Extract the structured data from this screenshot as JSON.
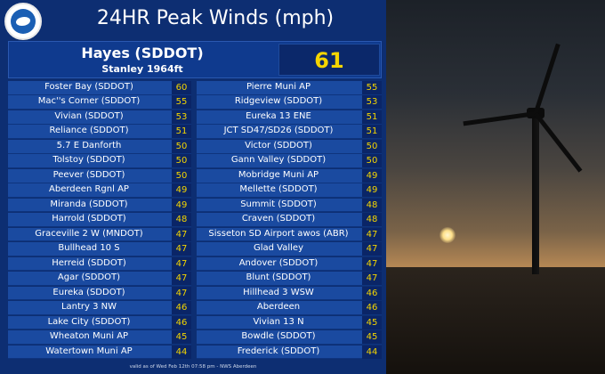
{
  "title": "24HR Peak Winds (mph)",
  "logo": {
    "icon": "nws-logo-icon",
    "text": "NATIONAL WEATHER SERVICE"
  },
  "featured": {
    "name": "Hayes (SDDOT)",
    "subtitle": "Stanley 1964ft",
    "value": "61"
  },
  "left_column": [
    {
      "name": "Foster Bay (SDDOT)",
      "value": "60"
    },
    {
      "name": "Mac''s Corner (SDDOT)",
      "value": "55"
    },
    {
      "name": "Vivian (SDDOT)",
      "value": "53"
    },
    {
      "name": "Reliance (SDDOT)",
      "value": "51"
    },
    {
      "name": "5.7 E Danforth",
      "value": "50"
    },
    {
      "name": "Tolstoy (SDDOT)",
      "value": "50"
    },
    {
      "name": "Peever (SDDOT)",
      "value": "50"
    },
    {
      "name": "Aberdeen Rgnl AP",
      "value": "49"
    },
    {
      "name": "Miranda (SDDOT)",
      "value": "49"
    },
    {
      "name": "Harrold (SDDOT)",
      "value": "48"
    },
    {
      "name": "Graceville 2 W (MNDOT)",
      "value": "47"
    },
    {
      "name": "Bullhead 10 S",
      "value": "47"
    },
    {
      "name": "Herreid (SDDOT)",
      "value": "47"
    },
    {
      "name": "Agar (SDDOT)",
      "value": "47"
    },
    {
      "name": "Eureka (SDDOT)",
      "value": "47"
    },
    {
      "name": "Lantry 3 NW",
      "value": "46"
    },
    {
      "name": "Lake City (SDDOT)",
      "value": "46"
    },
    {
      "name": "Wheaton Muni AP",
      "value": "45"
    },
    {
      "name": "Watertown Muni AP",
      "value": "44"
    }
  ],
  "right_column": [
    {
      "name": "Pierre Muni AP",
      "value": "55"
    },
    {
      "name": "Ridgeview (SDDOT)",
      "value": "53"
    },
    {
      "name": "Eureka 13 ENE",
      "value": "51"
    },
    {
      "name": "JCT SD47/SD26 (SDDOT)",
      "value": "51"
    },
    {
      "name": "Victor (SDDOT)",
      "value": "50"
    },
    {
      "name": "Gann Valley (SDDOT)",
      "value": "50"
    },
    {
      "name": "Mobridge Muni AP",
      "value": "49"
    },
    {
      "name": "Mellette (SDDOT)",
      "value": "49"
    },
    {
      "name": "Summit (SDDOT)",
      "value": "48"
    },
    {
      "name": "Craven (SDDOT)",
      "value": "48"
    },
    {
      "name": "Sisseton SD Airport awos (ABR)",
      "value": "47"
    },
    {
      "name": "Glad Valley",
      "value": "47"
    },
    {
      "name": "Andover (SDDOT)",
      "value": "47"
    },
    {
      "name": "Blunt (SDDOT)",
      "value": "47"
    },
    {
      "name": "Hillhead 3 WSW",
      "value": "46"
    },
    {
      "name": "Aberdeen",
      "value": "46"
    },
    {
      "name": "Vivian 13 N",
      "value": "45"
    },
    {
      "name": "Bowdle (SDDOT)",
      "value": "45"
    },
    {
      "name": "Frederick (SDDOT)",
      "value": "44"
    }
  ],
  "footer": "valid as of Wed Feb 12th 07:58 pm - NWS Aberdeen",
  "colors": {
    "panel": "#0d2e72",
    "row": "#1a4aa0",
    "value": "#f4d500"
  },
  "photo": {
    "subject": "wind-turbine-sunset-image"
  }
}
